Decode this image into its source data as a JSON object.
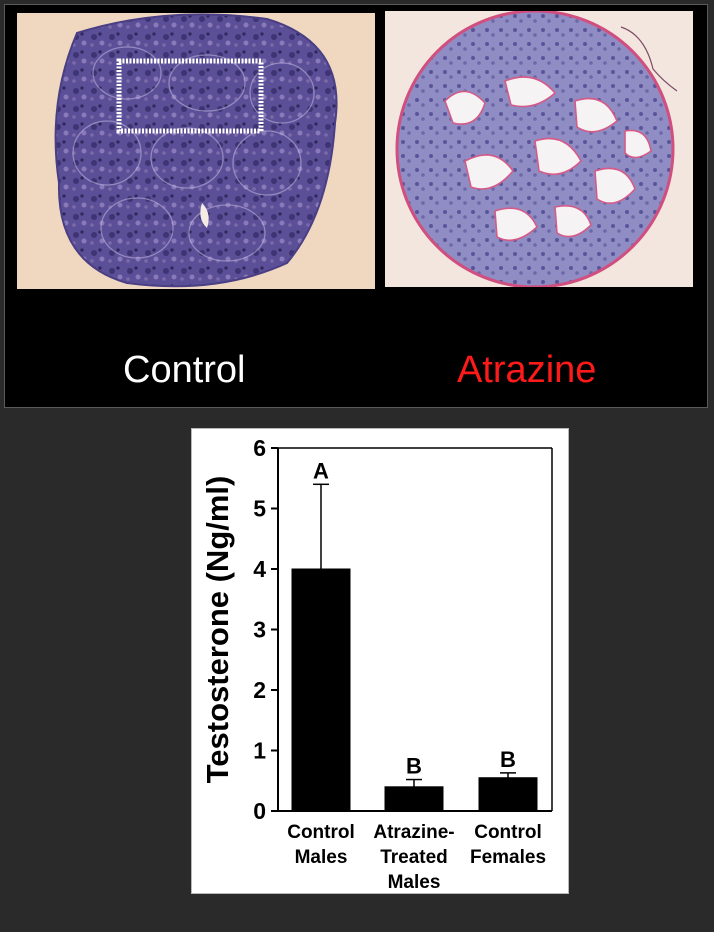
{
  "captions": {
    "control": "Control",
    "treated": "Atrazine"
  },
  "colors": {
    "control_caption": "#ffffff",
    "treated_caption": "#ff1a1a",
    "stain_purple": "#5a4f96",
    "stain_pink": "#d65a86",
    "bar": "#000000"
  },
  "chart_data": {
    "type": "bar",
    "ylabel": "Testosterone (Ng/ml)",
    "ylim": [
      0,
      6
    ],
    "yticks": [
      "0",
      "1",
      "2",
      "3",
      "4",
      "5",
      "6"
    ],
    "categories": [
      [
        "Control",
        "Males"
      ],
      [
        "Atrazine-",
        "Treated",
        "Males"
      ],
      [
        "Control",
        "Females"
      ]
    ],
    "values": [
      4.0,
      0.4,
      0.55
    ],
    "error_high": [
      5.4,
      0.52,
      0.63
    ],
    "annotations": [
      "A",
      "B",
      "B"
    ],
    "grid": false,
    "legend": "none"
  }
}
